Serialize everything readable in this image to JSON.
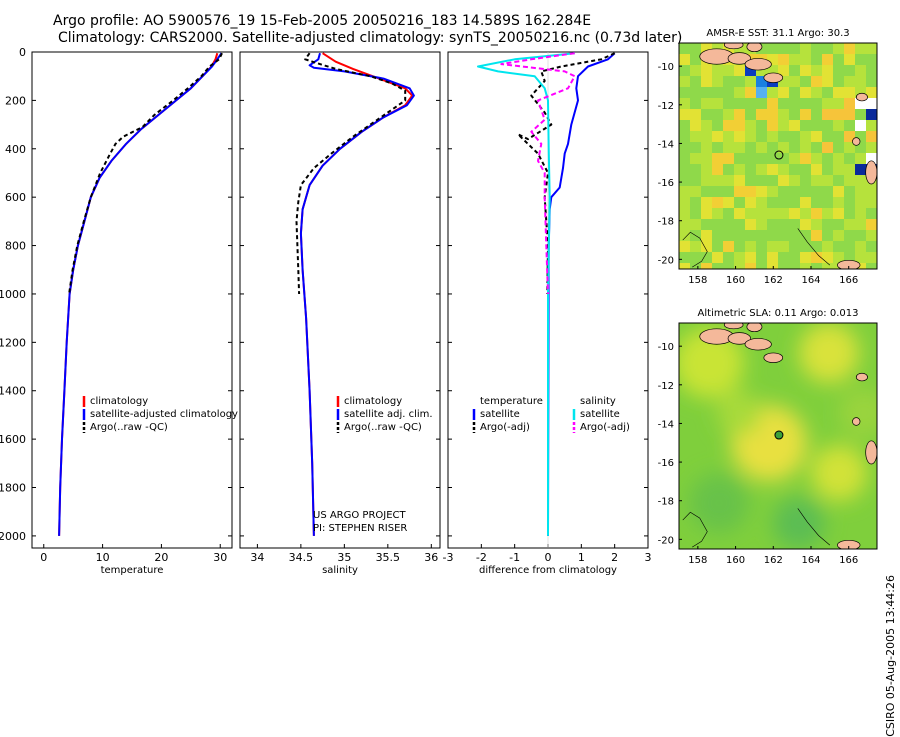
{
  "header": {
    "line1": "Argo profile: AO 5900576_19 15-Feb-2005 20050216_183 14.589S 162.284E",
    "line2": "Climatology: CARS2000. Satellite-adjusted climatology: synTS_20050216.nc (0.73d later)"
  },
  "colors": {
    "climatology": "#ff0000",
    "satellite": "#0000ff",
    "argo": "#000000",
    "sal_satellite": "#00e5ee",
    "sal_argo": "#ff00ff"
  },
  "chart_data": [
    {
      "type": "line",
      "name": "temperature-profile",
      "xlabel": "temperature",
      "ylabel": "",
      "xlim": [
        -2,
        32
      ],
      "ylim": [
        2050,
        0
      ],
      "xticks": [
        0,
        10,
        20,
        30
      ],
      "yticks": [
        0,
        200,
        400,
        600,
        800,
        1000,
        1200,
        1400,
        1600,
        1800,
        2000
      ],
      "legend": [
        "climatology",
        "satellite-adjusted climatology",
        "Argo(..raw -QC)"
      ],
      "series": [
        {
          "name": "climatology",
          "color": "#ff0000",
          "dash": "",
          "points": [
            [
              29.5,
              5
            ],
            [
              29.2,
              30
            ],
            [
              28.5,
              60
            ],
            [
              27.0,
              100
            ],
            [
              25.0,
              150
            ],
            [
              22.5,
              200
            ],
            [
              19.5,
              260
            ],
            [
              16.5,
              320
            ],
            [
              14.0,
              380
            ],
            [
              11.5,
              450
            ],
            [
              9.5,
              520
            ],
            [
              8.0,
              600
            ],
            [
              6.9,
              700
            ],
            [
              5.8,
              800
            ],
            [
              5.0,
              900
            ],
            [
              4.4,
              1000
            ],
            [
              3.9,
              1200
            ],
            [
              3.5,
              1400
            ],
            [
              3.1,
              1600
            ],
            [
              2.8,
              1800
            ],
            [
              2.6,
              2000
            ]
          ]
        },
        {
          "name": "satellite-adjusted climatology",
          "color": "#0000ff",
          "dash": "",
          "points": [
            [
              30.2,
              5
            ],
            [
              29.5,
              30
            ],
            [
              28.6,
              60
            ],
            [
              27.0,
              100
            ],
            [
              25.0,
              150
            ],
            [
              22.5,
              200
            ],
            [
              19.5,
              260
            ],
            [
              16.5,
              320
            ],
            [
              14.0,
              380
            ],
            [
              11.5,
              450
            ],
            [
              9.5,
              520
            ],
            [
              8.0,
              600
            ],
            [
              6.9,
              700
            ],
            [
              5.8,
              800
            ],
            [
              5.0,
              900
            ],
            [
              4.4,
              1000
            ],
            [
              3.9,
              1200
            ],
            [
              3.5,
              1400
            ],
            [
              3.1,
              1600
            ],
            [
              2.8,
              1800
            ],
            [
              2.6,
              2000
            ]
          ]
        },
        {
          "name": "Argo(..raw -QC)",
          "color": "#000000",
          "dash": "4,3",
          "points": [
            [
              30.3,
              5
            ],
            [
              29.8,
              30
            ],
            [
              28.2,
              60
            ],
            [
              26.8,
              100
            ],
            [
              24.5,
              150
            ],
            [
              22.0,
              200
            ],
            [
              18.8,
              260
            ],
            [
              16.8,
              310
            ],
            [
              13.5,
              350
            ],
            [
              12.2,
              380
            ],
            [
              11.3,
              420
            ],
            [
              9.6,
              500
            ],
            [
              8.0,
              600
            ],
            [
              6.8,
              700
            ],
            [
              5.7,
              800
            ],
            [
              4.9,
              900
            ],
            [
              4.3,
              1000
            ]
          ]
        }
      ]
    },
    {
      "type": "line",
      "name": "salinity-profile",
      "xlabel": "salinity",
      "ylabel": "",
      "xlim": [
        33.8,
        36.1
      ],
      "ylim": [
        2050,
        0
      ],
      "xticks": [
        34,
        34.5,
        35,
        35.5,
        36
      ],
      "xticklabels": [
        "34",
        "34.5",
        "35",
        "35.5",
        "36"
      ],
      "legend": [
        "climatology",
        "satellite adj. clim.",
        "Argo(..raw -QC)"
      ],
      "annotations": [
        "US ARGO PROJECT",
        "PI: STEPHEN RISER"
      ],
      "series": [
        {
          "name": "climatology",
          "color": "#ff0000",
          "dash": "",
          "points": [
            [
              34.75,
              5
            ],
            [
              34.9,
              40
            ],
            [
              35.1,
              70
            ],
            [
              35.4,
              110
            ],
            [
              35.7,
              150
            ],
            [
              35.78,
              180
            ],
            [
              35.7,
              220
            ],
            [
              35.45,
              270
            ],
            [
              35.2,
              330
            ],
            [
              34.95,
              400
            ],
            [
              34.75,
              470
            ],
            [
              34.6,
              550
            ],
            [
              34.52,
              650
            ],
            [
              34.5,
              750
            ],
            [
              34.52,
              900
            ],
            [
              34.56,
              1100
            ],
            [
              34.6,
              1400
            ],
            [
              34.63,
              1700
            ],
            [
              34.65,
              2000
            ]
          ]
        },
        {
          "name": "satellite adj. clim.",
          "color": "#0000ff",
          "dash": "",
          "points": [
            [
              34.72,
              5
            ],
            [
              34.7,
              30
            ],
            [
              34.6,
              55
            ],
            [
              34.65,
              65
            ],
            [
              35.0,
              80
            ],
            [
              35.45,
              110
            ],
            [
              35.75,
              150
            ],
            [
              35.8,
              180
            ],
            [
              35.72,
              220
            ],
            [
              35.45,
              270
            ],
            [
              35.2,
              330
            ],
            [
              34.95,
              400
            ],
            [
              34.75,
              470
            ],
            [
              34.6,
              550
            ],
            [
              34.52,
              650
            ],
            [
              34.5,
              750
            ],
            [
              34.52,
              900
            ],
            [
              34.56,
              1100
            ],
            [
              34.6,
              1400
            ],
            [
              34.63,
              1700
            ],
            [
              34.65,
              2000
            ]
          ]
        },
        {
          "name": "Argo(..raw -QC)",
          "color": "#000000",
          "dash": "4,3",
          "points": [
            [
              34.6,
              5
            ],
            [
              34.55,
              30
            ],
            [
              34.72,
              50
            ],
            [
              34.9,
              70
            ],
            [
              35.1,
              85
            ],
            [
              35.3,
              100
            ],
            [
              35.55,
              130
            ],
            [
              35.7,
              160
            ],
            [
              35.7,
              200
            ],
            [
              35.5,
              250
            ],
            [
              35.3,
              300
            ],
            [
              35.1,
              350
            ],
            [
              34.85,
              420
            ],
            [
              34.65,
              480
            ],
            [
              34.5,
              550
            ],
            [
              34.47,
              620
            ],
            [
              34.45,
              700
            ],
            [
              34.46,
              800
            ],
            [
              34.47,
              900
            ],
            [
              34.48,
              1000
            ]
          ]
        }
      ]
    },
    {
      "type": "line",
      "name": "difference-profile",
      "xlabel": "difference from climatology",
      "ylabel": "",
      "xlim": [
        -3,
        3
      ],
      "ylim": [
        2050,
        0
      ],
      "xticks": [
        -3,
        -2,
        -1,
        0,
        1,
        2,
        3
      ],
      "legend_temperature_title": "temperature",
      "legend_salinity_title": "salinity",
      "legend": [
        "satellite",
        "Argo(-adj)",
        "satellite",
        "Argo(-adj)"
      ],
      "series": [
        {
          "name": "temperature satellite",
          "color": "#0000ff",
          "dash": "",
          "points": [
            [
              2.0,
              5
            ],
            [
              1.8,
              30
            ],
            [
              1.2,
              60
            ],
            [
              0.9,
              100
            ],
            [
              0.85,
              150
            ],
            [
              0.9,
              200
            ],
            [
              0.7,
              300
            ],
            [
              0.6,
              380
            ],
            [
              0.5,
              420
            ],
            [
              0.45,
              480
            ],
            [
              0.35,
              560
            ],
            [
              0.1,
              600
            ],
            [
              0.05,
              650
            ],
            [
              0.02,
              800
            ],
            [
              0.0,
              2000
            ]
          ]
        },
        {
          "name": "temperature Argo(-adj)",
          "color": "#000000",
          "dash": "4,3",
          "points": [
            [
              2.0,
              5
            ],
            [
              1.6,
              30
            ],
            [
              0.4,
              60
            ],
            [
              -0.2,
              80
            ],
            [
              -0.1,
              120
            ],
            [
              -0.5,
              180
            ],
            [
              -0.1,
              250
            ],
            [
              0.1,
              300
            ],
            [
              -0.6,
              360
            ],
            [
              -0.9,
              340
            ],
            [
              -0.3,
              420
            ],
            [
              0.0,
              500
            ],
            [
              -0.1,
              600
            ],
            [
              -0.05,
              700
            ],
            [
              0.0,
              800
            ],
            [
              -0.02,
              1000
            ]
          ]
        },
        {
          "name": "salinity satellite",
          "color": "#00e5ee",
          "dash": "",
          "points": [
            [
              0.8,
              5
            ],
            [
              -1.0,
              30
            ],
            [
              -2.1,
              60
            ],
            [
              -1.5,
              80
            ],
            [
              -0.4,
              100
            ],
            [
              -0.1,
              150
            ],
            [
              0.0,
              200
            ],
            [
              0.02,
              400
            ],
            [
              0.05,
              600
            ],
            [
              0.0,
              1000
            ],
            [
              0.0,
              2000
            ]
          ]
        },
        {
          "name": "salinity Argo(-adj)",
          "color": "#ff00ff",
          "dash": "5,3",
          "points": [
            [
              0.8,
              5
            ],
            [
              -0.5,
              30
            ],
            [
              -1.4,
              50
            ],
            [
              0.5,
              80
            ],
            [
              0.8,
              100
            ],
            [
              0.6,
              150
            ],
            [
              -0.3,
              200
            ],
            [
              -0.1,
              280
            ],
            [
              -0.5,
              330
            ],
            [
              -0.2,
              380
            ],
            [
              -0.3,
              450
            ],
            [
              -0.1,
              500
            ],
            [
              -0.1,
              600
            ],
            [
              -0.05,
              800
            ],
            [
              0.0,
              1000
            ]
          ]
        }
      ]
    }
  ],
  "maps": [
    {
      "title": "AMSR-E SST: 31.1 Argo: 30.3",
      "xlim": [
        157,
        167.5
      ],
      "ylim": [
        -20.5,
        -8.8
      ],
      "xticks": [
        158,
        160,
        162,
        164,
        166
      ],
      "yticks": [
        -10,
        -12,
        -14,
        -16,
        -18,
        -20
      ],
      "float_position": [
        162.3,
        -14.6
      ]
    },
    {
      "title": "Altimetric SLA: 0.11 Argo: 0.013",
      "xlim": [
        157,
        167.5
      ],
      "ylim": [
        -20.5,
        -8.8
      ],
      "xticks": [
        158,
        160,
        162,
        164,
        166
      ],
      "yticks": [
        -10,
        -12,
        -14,
        -16,
        -18,
        -20
      ],
      "float_position": [
        162.3,
        -14.6
      ]
    }
  ],
  "footer": {
    "credit": "CSIRO 05-Aug-2005 13:44:26"
  }
}
